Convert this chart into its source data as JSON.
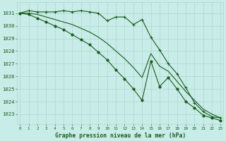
{
  "x": [
    0,
    1,
    2,
    3,
    4,
    5,
    6,
    7,
    8,
    9,
    10,
    11,
    12,
    13,
    14,
    15,
    16,
    17,
    18,
    19,
    20,
    21,
    22,
    23
  ],
  "line1": [
    1031.0,
    1031.2,
    1031.1,
    1031.1,
    1031.1,
    1031.2,
    1031.1,
    1031.2,
    1031.1,
    1031.0,
    1030.4,
    1030.7,
    1030.7,
    1030.1,
    1030.5,
    1029.1,
    1028.1,
    1027.0,
    1026.2,
    1025.1,
    1023.9,
    1023.2,
    1022.8,
    1022.7
  ],
  "line2": [
    1031.0,
    1031.0,
    1030.9,
    1030.7,
    1030.5,
    1030.3,
    1030.1,
    1029.8,
    1029.5,
    1029.1,
    1028.6,
    1028.0,
    1027.4,
    1026.7,
    1025.9,
    1027.8,
    1026.8,
    1026.4,
    1025.6,
    1024.8,
    1024.1,
    1023.4,
    1023.0,
    1022.7
  ],
  "line3": [
    1031.0,
    1030.9,
    1030.6,
    1030.3,
    1030.0,
    1029.7,
    1029.3,
    1028.9,
    1028.5,
    1027.9,
    1027.3,
    1026.5,
    1025.8,
    1025.0,
    1024.1,
    1027.2,
    1025.2,
    1025.9,
    1025.0,
    1024.0,
    1023.5,
    1022.9,
    1022.7,
    1022.5
  ],
  "line_color": "#1a5c1a",
  "bg_color": "#c8ece8",
  "grid_color": "#b0d4ce",
  "text_color": "#1a5c1a",
  "xlabel": "Graphe pression niveau de la mer (hPa)",
  "yticks": [
    1023,
    1024,
    1025,
    1026,
    1027,
    1028,
    1029,
    1030,
    1031
  ]
}
